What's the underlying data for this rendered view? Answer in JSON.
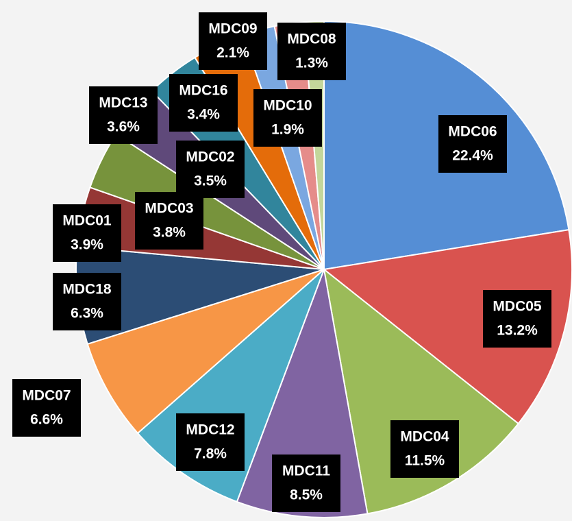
{
  "chart_data": {
    "type": "pie",
    "categories": [
      "MDC06",
      "MDC05",
      "MDC04",
      "MDC11",
      "MDC12",
      "MDC07",
      "MDC18",
      "MDC01",
      "MDC03",
      "MDC13",
      "MDC02",
      "MDC16",
      "MDC09",
      "MDC10",
      "MDC08"
    ],
    "values": [
      22.4,
      13.2,
      11.5,
      8.5,
      7.8,
      6.6,
      6.3,
      3.9,
      3.8,
      3.6,
      3.5,
      3.4,
      2.1,
      1.9,
      1.3
    ],
    "value_labels": [
      "22.4%",
      "13.2%",
      "11.5%",
      "8.5%",
      "7.8%",
      "6.6%",
      "6.3%",
      "3.9%",
      "3.8%",
      "3.6%",
      "3.5%",
      "3.4%",
      "2.1%",
      "1.9%",
      "1.3%"
    ],
    "colors": [
      "#558ed5",
      "#d9534f",
      "#9bbb59",
      "#8064a2",
      "#4bacc6",
      "#f79646",
      "#2c4d75",
      "#953735",
      "#77933c",
      "#5f497a",
      "#31859c",
      "#e46c0a",
      "#7aa7e0",
      "#e58c8a",
      "#c3d69b"
    ]
  }
}
